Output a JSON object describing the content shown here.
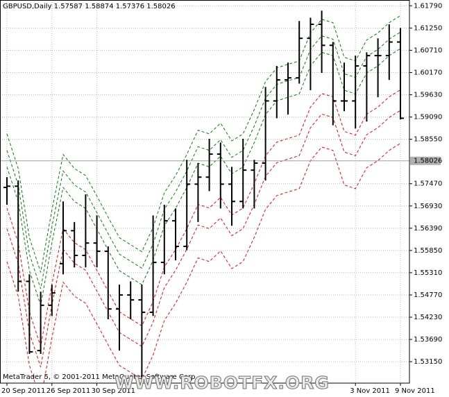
{
  "chart_data": {
    "type": "ohlc",
    "title": "GBPUSD,Daily  1.57587 1.58874 1.57376 1.58026",
    "copyright": "MetaTrader 5, © 2001-2011 MetaQuotes Software Corp.",
    "watermark": "WWW.ROBOTFX.ORG",
    "categories": [
      "20 Sep 2011",
      null,
      null,
      null,
      "26 Sep 2011",
      null,
      null,
      null,
      "30 Sep 2011",
      null,
      null,
      null,
      null,
      null,
      null,
      null,
      null,
      null,
      null,
      null,
      null,
      null,
      null,
      null,
      null,
      null,
      null,
      null,
      null,
      null,
      null,
      "3 Nov 2011",
      null,
      null,
      null,
      "9 Nov 2011"
    ],
    "open": [
      1.5738,
      1.5741,
      1.551,
      1.5342,
      1.5452,
      1.5553,
      1.5633,
      1.5573,
      1.5603,
      1.5583,
      1.5443,
      1.5477,
      1.5465,
      1.5435,
      1.5556,
      1.5657,
      1.5595,
      1.5746,
      1.5763,
      1.5819,
      1.5746,
      1.5704,
      1.578,
      1.5797,
      1.5948,
      1.5999,
      1.6004,
      1.61,
      1.6134,
      1.6083,
      1.5948,
      1.5948,
      1.6033,
      1.6058,
      1.6058,
      1.6091
    ],
    "high": [
      1.5763,
      1.5755,
      1.5527,
      1.5485,
      1.5502,
      1.5704,
      1.5654,
      1.5721,
      1.567,
      1.5595,
      1.5502,
      1.551,
      1.5502,
      1.567,
      1.5696,
      1.5687,
      1.5805,
      1.5797,
      1.5856,
      1.5847,
      1.5788,
      1.5856,
      1.5805,
      1.5982,
      1.6033,
      1.6041,
      1.6142,
      1.615,
      1.6167,
      1.6091,
      1.6041,
      1.6058,
      1.6066,
      1.61,
      1.6134,
      1.6125
    ],
    "low": [
      1.5696,
      1.5485,
      1.5334,
      1.5334,
      1.5426,
      1.5527,
      1.5544,
      1.5544,
      1.5544,
      1.5418,
      1.5342,
      1.5418,
      1.5275,
      1.5426,
      1.5527,
      1.5561,
      1.5586,
      1.5654,
      1.5729,
      1.5687,
      1.5645,
      1.5687,
      1.5687,
      1.5755,
      1.5906,
      1.5915,
      1.599,
      1.5974,
      1.6016,
      1.5889,
      1.5923,
      1.5881,
      1.5898,
      1.5957,
      1.5999,
      1.5903
    ],
    "close": [
      1.5741,
      1.551,
      1.5339,
      1.5452,
      1.5482,
      1.5633,
      1.5573,
      1.5603,
      1.5583,
      1.5443,
      1.5477,
      1.5465,
      1.5435,
      1.5556,
      1.5657,
      1.5595,
      1.5746,
      1.5763,
      1.5819,
      1.5746,
      1.5704,
      1.578,
      1.5797,
      1.5948,
      1.5999,
      1.6004,
      1.61,
      1.6134,
      1.6083,
      1.5948,
      1.5948,
      1.6033,
      1.6058,
      1.6058,
      1.6091,
      1.5906
    ],
    "lines": [
      {
        "color": "#008000",
        "values": [
          1.5868,
          1.5784,
          1.5616,
          1.5532,
          1.5683,
          1.5818,
          1.5784,
          1.5767,
          1.5717,
          1.5666,
          1.5616,
          1.5599,
          1.5582,
          1.5641,
          1.5725,
          1.5767,
          1.5818,
          1.5877,
          1.5868,
          1.5894,
          1.5851,
          1.5868,
          1.5927,
          1.5995,
          1.6028,
          1.6037,
          1.6045,
          1.6113,
          1.6146,
          1.6138,
          1.6054,
          1.6045,
          1.6096,
          1.6113,
          1.6138,
          1.6155
        ]
      },
      {
        "color": "#008000",
        "values": [
          1.5828,
          1.5744,
          1.5576,
          1.5492,
          1.5643,
          1.5778,
          1.5744,
          1.5727,
          1.5677,
          1.5626,
          1.5576,
          1.5559,
          1.5542,
          1.5601,
          1.5685,
          1.5727,
          1.5778,
          1.5837,
          1.5828,
          1.5854,
          1.5811,
          1.5828,
          1.5887,
          1.5955,
          1.5988,
          1.5997,
          1.6005,
          1.6073,
          1.6106,
          1.6098,
          1.6014,
          1.6005,
          1.6056,
          1.6073,
          1.6098,
          1.6115
        ]
      },
      {
        "color": "#008000",
        "values": [
          1.5788,
          1.5704,
          1.5536,
          1.5452,
          1.5603,
          1.5738,
          1.5704,
          1.5687,
          1.5637,
          1.5586,
          1.5536,
          1.5519,
          1.5502,
          1.5561,
          1.5645,
          1.5687,
          1.5738,
          1.5797,
          1.5788,
          1.5814,
          1.5771,
          1.5788,
          1.5847,
          1.5915,
          1.5948,
          1.5957,
          1.5965,
          1.6033,
          1.6066,
          1.6058,
          1.5974,
          1.5965,
          1.6016,
          1.6033,
          1.6058,
          1.6075
        ]
      },
      {
        "color": "#ff0000",
        "values": [
          1.5688,
          1.5604,
          1.5436,
          1.5352,
          1.5503,
          1.5638,
          1.5604,
          1.5587,
          1.5537,
          1.5486,
          1.5436,
          1.5419,
          1.5402,
          1.5461,
          1.5545,
          1.5587,
          1.5638,
          1.5697,
          1.5688,
          1.5714,
          1.5671,
          1.5688,
          1.5747,
          1.5815,
          1.5848,
          1.5857,
          1.5865,
          1.5933,
          1.5966,
          1.5958,
          1.5874,
          1.5865,
          1.5916,
          1.5933,
          1.5958,
          1.5975
        ]
      },
      {
        "color": "#ff0000",
        "values": [
          1.5638,
          1.5554,
          1.5386,
          1.5302,
          1.5453,
          1.5588,
          1.5554,
          1.5537,
          1.5487,
          1.5436,
          1.5386,
          1.5369,
          1.5352,
          1.5411,
          1.5495,
          1.5537,
          1.5588,
          1.5647,
          1.5638,
          1.5664,
          1.5621,
          1.5638,
          1.5697,
          1.5765,
          1.5798,
          1.5807,
          1.5815,
          1.5883,
          1.5916,
          1.5908,
          1.5824,
          1.5815,
          1.5866,
          1.5883,
          1.5908,
          1.5925
        ]
      },
      {
        "color": "#ff0000",
        "values": [
          1.5558,
          1.5474,
          1.5306,
          1.5222,
          1.5373,
          1.5508,
          1.5474,
          1.5457,
          1.5407,
          1.5356,
          1.5306,
          1.5289,
          1.5272,
          1.5331,
          1.5415,
          1.5457,
          1.5508,
          1.5567,
          1.5558,
          1.5584,
          1.5541,
          1.5558,
          1.5617,
          1.5685,
          1.5718,
          1.5727,
          1.5735,
          1.5803,
          1.5836,
          1.5828,
          1.5744,
          1.5735,
          1.5786,
          1.5803,
          1.5828,
          1.5845
        ]
      }
    ],
    "current_price": 1.58026,
    "ylim": [
      1.5263,
      1.6193
    ],
    "yticks": [
      {
        "value": 1.6179,
        "label": "1.61790"
      },
      {
        "value": 1.6125,
        "label": "1.61250"
      },
      {
        "value": 1.6071,
        "label": "1.60710"
      },
      {
        "value": 1.6017,
        "label": "1.60170"
      },
      {
        "value": 1.5963,
        "label": "1.59630"
      },
      {
        "value": 1.5909,
        "label": "1.59090"
      },
      {
        "value": 1.5855,
        "label": "1.58550"
      },
      {
        "value": 1.5747,
        "label": "1.57470"
      },
      {
        "value": 1.5693,
        "label": "1.56930"
      },
      {
        "value": 1.5639,
        "label": "1.56390"
      },
      {
        "value": 1.5585,
        "label": "1.55850"
      },
      {
        "value": 1.5531,
        "label": "1.55310"
      },
      {
        "value": 1.5477,
        "label": "1.54770"
      },
      {
        "value": 1.5423,
        "label": "1.54230"
      },
      {
        "value": 1.5369,
        "label": "1.53690"
      },
      {
        "value": 1.5315,
        "label": "1.53150"
      }
    ],
    "grid": true
  }
}
